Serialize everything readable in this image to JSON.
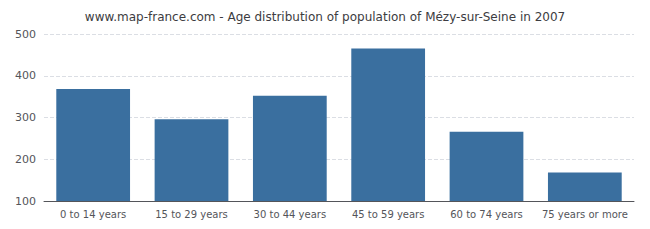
{
  "chart_data": {
    "type": "bar",
    "title": "www.map-france.com - Age distribution of population of Mézy-sur-Seine in 2007",
    "categories": [
      "0 to 14 years",
      "15 to 29 years",
      "30 to 44 years",
      "45 to 59 years",
      "60 to 74 years",
      "75 years or more"
    ],
    "values": [
      368,
      296,
      352,
      465,
      266,
      168
    ],
    "color": "#3a6f9f",
    "ylim": [
      100,
      500
    ],
    "yticks": [
      100,
      200,
      300,
      400,
      500
    ],
    "grid": true
  }
}
